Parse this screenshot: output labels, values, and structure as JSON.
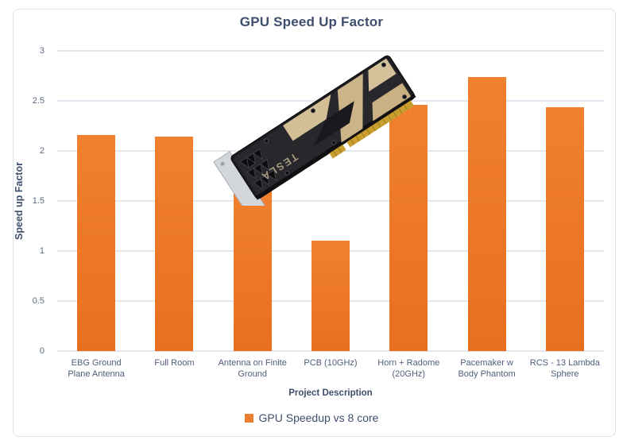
{
  "chart_data": {
    "type": "bar",
    "title": "GPU Speed Up Factor",
    "xlabel": "Project Description",
    "ylabel": "Speed up Factor",
    "categories": [
      "EBG Ground Plane Antenna",
      "Full Room",
      "Antenna on Finite Ground",
      "PCB (10GHz)",
      "Horn + Radome (20GHz)",
      "Pacemaker w Body Phantom",
      "RCS - 13 Lambda Sphere"
    ],
    "series": [
      {
        "name": "GPU Speedup vs 8 core",
        "values": [
          2.16,
          2.14,
          1.65,
          1.1,
          2.46,
          2.74,
          2.44
        ]
      }
    ],
    "ylim": [
      0,
      3
    ],
    "ytick_interval": 0.5,
    "yticks": [
      "0",
      "0.5",
      "1",
      "1.5",
      "2",
      "2.5",
      "3"
    ],
    "grid": true,
    "legend_position": "bottom",
    "bar_color": "#ED7D31",
    "colors": {
      "title_text": "#3e4e6c",
      "tick_text": "#5d6a80",
      "gridline": "#e2e6ee",
      "frame_border": "#dde3ed"
    }
  },
  "overlay_image": {
    "description": "nvidia-tesla-gpu-card-photo",
    "brand_text": "TESLA"
  }
}
